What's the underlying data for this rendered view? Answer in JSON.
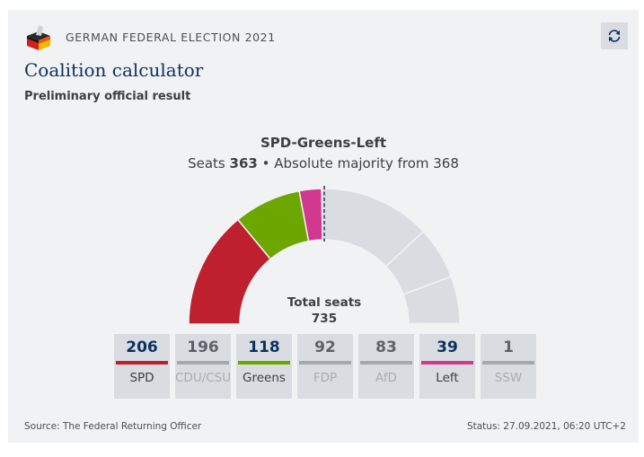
{
  "header": {
    "kicker": "GERMAN FEDERAL ELECTION 2021",
    "logo_icon": "ballot-box-icon",
    "refresh_icon": "refresh-icon"
  },
  "title": "Coalition calculator",
  "subtitle": "Preliminary official result",
  "coalition": {
    "name": "SPD-Greens-Left",
    "seats_label": "Seats",
    "seats": "363",
    "separator": "•",
    "majority_text": "Absolute majority from 368"
  },
  "total": {
    "label": "Total seats",
    "value": "735"
  },
  "chart_data": {
    "type": "pie",
    "subtype": "half-donut (parliament seats)",
    "title": "SPD-Greens-Left",
    "total_seats": 735,
    "majority_threshold": 368,
    "coalition_seats": 363,
    "majority_marker": "dashed vertical line at top center",
    "segments": [
      {
        "name": "SPD",
        "value": 206,
        "selected": true,
        "color": "#be202e"
      },
      {
        "name": "Greens",
        "value": 118,
        "selected": true,
        "color": "#6ea600"
      },
      {
        "name": "Left",
        "value": 39,
        "selected": true,
        "color": "#d2388f"
      },
      {
        "name": "CDU/CSU",
        "value": 196,
        "selected": false,
        "color": "#d9dde1"
      },
      {
        "name": "FDP",
        "value": 92,
        "selected": false,
        "color": "#d9dde1"
      },
      {
        "name": "AfD",
        "value": 83,
        "selected": false,
        "color": "#d9dde1"
      },
      {
        "name": "SSW",
        "value": 1,
        "selected": false,
        "color": "#d9dde1"
      }
    ]
  },
  "parties": [
    {
      "name": "SPD",
      "seats": "206",
      "active": true,
      "color": "#be202e"
    },
    {
      "name": "CDU/CSU",
      "seats": "196",
      "active": false,
      "color": "#a3a9b0"
    },
    {
      "name": "Greens",
      "seats": "118",
      "active": true,
      "color": "#6ea600"
    },
    {
      "name": "FDP",
      "seats": "92",
      "active": false,
      "color": "#a3a9b0"
    },
    {
      "name": "AfD",
      "seats": "83",
      "active": false,
      "color": "#a3a9b0"
    },
    {
      "name": "Left",
      "seats": "39",
      "active": true,
      "color": "#d2388f"
    },
    {
      "name": "SSW",
      "seats": "1",
      "active": false,
      "color": "#a3a9b0"
    }
  ],
  "footer": {
    "source": "Source: The Federal Returning Officer",
    "status": "Status: 27.09.2021, 06:20 UTC+2"
  }
}
